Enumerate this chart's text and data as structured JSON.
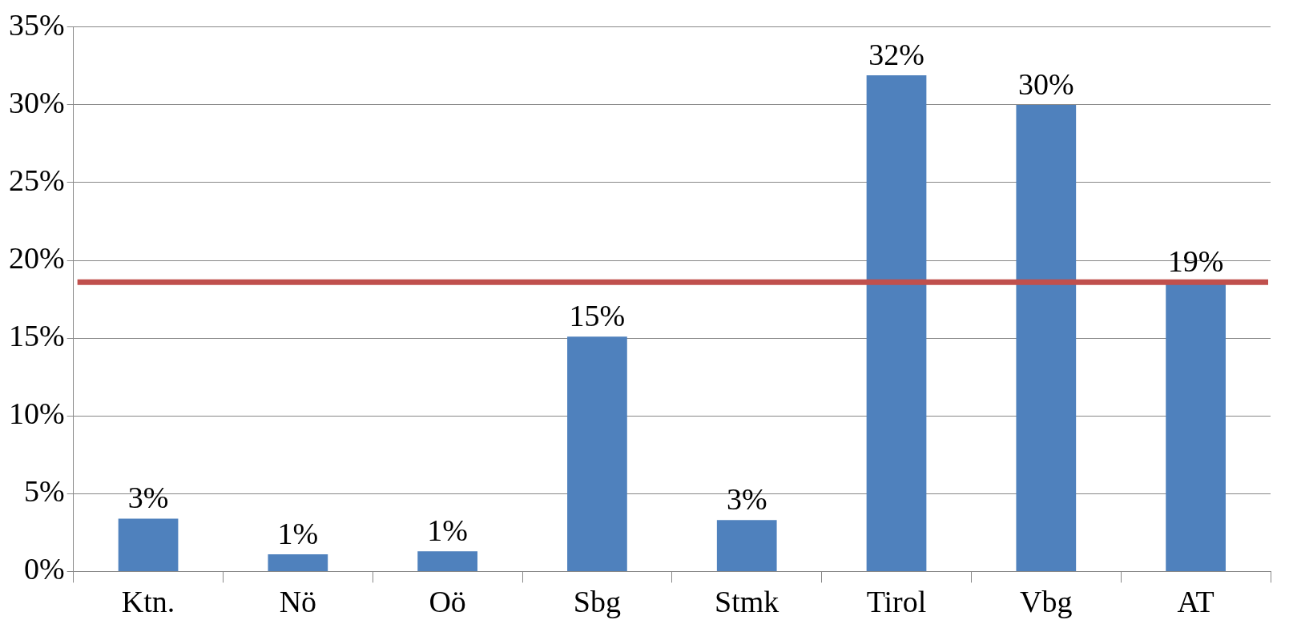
{
  "chart_data": {
    "type": "bar",
    "categories": [
      "Ktn.",
      "Nö",
      "Oö",
      "Sbg",
      "Stmk",
      "Tirol",
      "Vbg",
      "AT"
    ],
    "values": [
      3.4,
      1.1,
      1.3,
      15.1,
      3.3,
      31.9,
      30.0,
      18.6
    ],
    "value_labels": [
      "3%",
      "1%",
      "1%",
      "15%",
      "3%",
      "32%",
      "30%",
      "19%"
    ],
    "color": "#4f81bd",
    "ylim": [
      0,
      35
    ],
    "yticks": [
      {
        "value": 0,
        "label": "0%"
      },
      {
        "value": 5,
        "label": "5%"
      },
      {
        "value": 10,
        "label": "10%"
      },
      {
        "value": 15,
        "label": "15%"
      },
      {
        "value": 20,
        "label": "20%"
      },
      {
        "value": 25,
        "label": "25%"
      },
      {
        "value": 30,
        "label": "30%"
      },
      {
        "value": 35,
        "label": "35%"
      }
    ],
    "ref_lines": [
      {
        "axis": "y",
        "value": 18.6,
        "color": "#c0504d"
      }
    ],
    "grid": "y",
    "legend": false
  }
}
